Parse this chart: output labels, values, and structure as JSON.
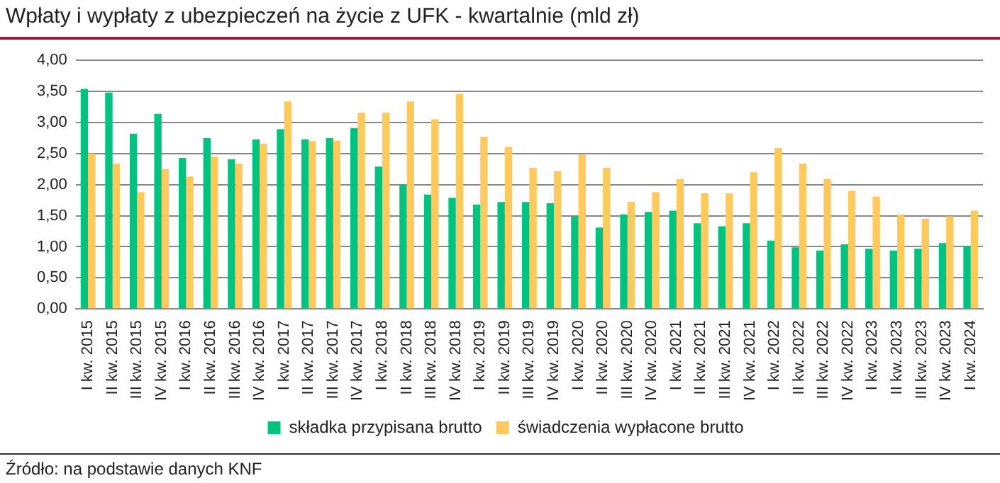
{
  "chart_data": {
    "type": "bar",
    "title": "Wpłaty i wypłaty z ubezpieczeń na życie z UFK - kwartalnie (mld zł)",
    "categories": [
      "I kw. 2015",
      "II kw. 2015",
      "III kw. 2015",
      "IV kw. 2015",
      "I kw. 2016",
      "II kw. 2016",
      "III kw. 2016",
      "IV kw. 2016",
      "I kw. 2017",
      "II kw. 2017",
      "III kw. 2017",
      "IV kw. 2017",
      "I kw. 2018",
      "II kw. 2018",
      "III kw. 2018",
      "IV kw. 2018",
      "I kw. 2019",
      "II kw. 2019",
      "III kw. 2019",
      "IV kw. 2019",
      "I kw. 2020",
      "II kw. 2020",
      "III kw. 2020",
      "IV kw. 2020",
      "I kw. 2021",
      "II kw. 2021",
      "III kw. 2021",
      "IV kw. 2021",
      "I kw. 2022",
      "II kw. 2022",
      "III kw. 2022",
      "IV kw. 2022",
      "I kw. 2023",
      "II kw. 2023",
      "III kw. 2023",
      "IV kw. 2023",
      "I kw. 2024"
    ],
    "series": [
      {
        "name": "składka przypisana brutto",
        "color": "#00c281",
        "values": [
          3.54,
          3.48,
          2.82,
          3.14,
          2.43,
          2.75,
          2.41,
          2.73,
          2.89,
          2.73,
          2.75,
          2.91,
          2.29,
          2.0,
          1.84,
          1.79,
          1.68,
          1.72,
          1.72,
          1.7,
          1.49,
          1.31,
          1.52,
          1.56,
          1.58,
          1.38,
          1.33,
          1.38,
          1.1,
          0.99,
          0.94,
          1.04,
          0.97,
          0.94,
          0.97,
          1.06,
          1.01
        ]
      },
      {
        "name": "świadczenia wypłacone brutto",
        "color": "#ffc95c",
        "values": [
          2.5,
          2.34,
          1.88,
          2.25,
          2.13,
          2.45,
          2.34,
          2.66,
          3.34,
          2.7,
          2.71,
          3.16,
          3.16,
          3.34,
          3.05,
          3.46,
          2.77,
          2.61,
          2.27,
          2.22,
          2.48,
          2.27,
          1.72,
          1.88,
          2.09,
          1.86,
          1.86,
          2.2,
          2.59,
          2.34,
          2.09,
          1.9,
          1.81,
          1.52,
          1.45,
          1.49,
          1.58
        ]
      }
    ],
    "ylim": [
      0,
      4
    ],
    "yticks": [
      {
        "value": 0,
        "label": "0,00"
      },
      {
        "value": 0.5,
        "label": "0,50"
      },
      {
        "value": 1,
        "label": "1,00"
      },
      {
        "value": 1.5,
        "label": "1,50"
      },
      {
        "value": 2,
        "label": "2,00"
      },
      {
        "value": 2.5,
        "label": "2,50"
      },
      {
        "value": 3,
        "label": "3,00"
      },
      {
        "value": 3.5,
        "label": "3,50"
      },
      {
        "value": 4,
        "label": "4,00"
      }
    ],
    "grid": "y",
    "legend": "bottom",
    "annotations": [
      "Źródło: na podstawie danych KNF"
    ]
  }
}
